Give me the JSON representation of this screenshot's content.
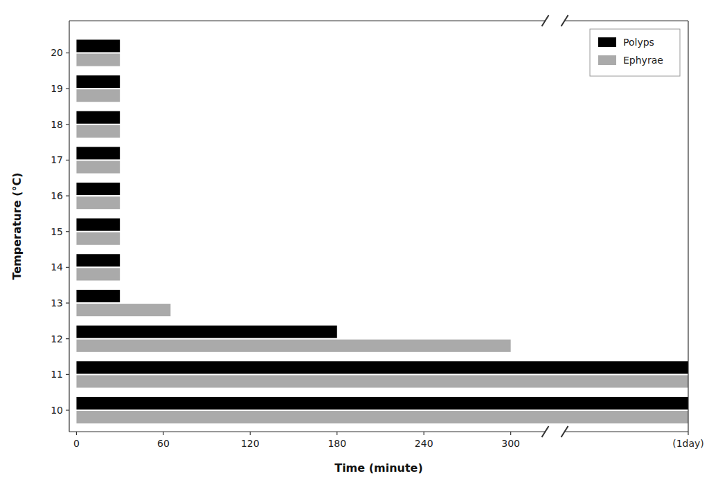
{
  "chart_data": {
    "type": "bar",
    "orientation": "horizontal",
    "xlabel": "Time (minute)",
    "ylabel": "Temperature (°C)",
    "categories": [
      10,
      11,
      12,
      13,
      14,
      15,
      16,
      17,
      18,
      19,
      20
    ],
    "series": [
      {
        "name": "Polyps",
        "color": "#000000",
        "values": [
          1440,
          1440,
          180,
          30,
          30,
          30,
          30,
          30,
          30,
          30,
          30
        ]
      },
      {
        "name": "Ephyrae",
        "color": "#aaaaaa",
        "values": [
          1440,
          1440,
          300,
          65,
          30,
          30,
          30,
          30,
          30,
          30,
          30
        ]
      }
    ],
    "xlim": [
      -5,
      1440
    ],
    "xticks": [
      0,
      60,
      120,
      180,
      240,
      300,
      {
        "value": 1440,
        "label": "(1day)"
      }
    ],
    "ylim": [
      9.4,
      20.9
    ],
    "yticks": [
      10,
      11,
      12,
      13,
      14,
      15,
      16,
      17,
      18,
      19,
      20
    ],
    "legend": "upper right",
    "grid": false
  }
}
